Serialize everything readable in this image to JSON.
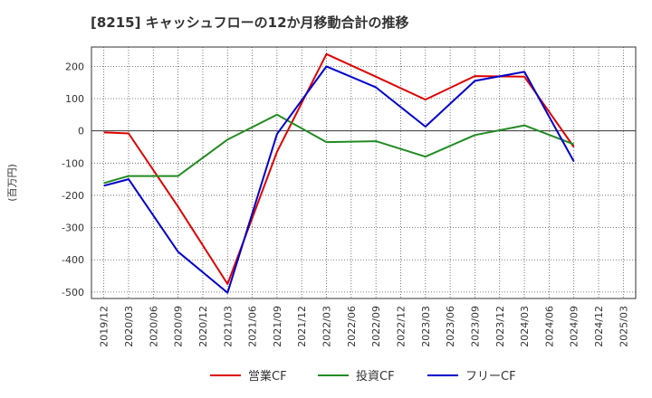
{
  "chart_data": {
    "type": "line",
    "title": "[8215]  キャッシュフローの12か月移動合計の推移",
    "ylabel": "(百万円)",
    "xlabel": "",
    "ylim": [
      -520,
      260
    ],
    "yticks": [
      200,
      100,
      0,
      -100,
      -200,
      -300,
      -400,
      -500
    ],
    "categories": [
      "2019/12",
      "2020/03",
      "2020/06",
      "2020/09",
      "2020/12",
      "2021/03",
      "2021/06",
      "2021/09",
      "2021/12",
      "2022/03",
      "2022/06",
      "2022/09",
      "2022/12",
      "2023/03",
      "2023/06",
      "2023/09",
      "2023/12",
      "2024/03",
      "2024/06",
      "2024/09",
      "2024/12",
      "2025/03"
    ],
    "grid": true,
    "legend_position": "bottom",
    "series": [
      {
        "name": "営業CF",
        "color": "#dd0000",
        "values": [
          -5,
          -8,
          null,
          -235,
          null,
          -475,
          null,
          -65,
          null,
          238,
          null,
          168,
          null,
          97,
          null,
          170,
          null,
          168,
          null,
          -50,
          null,
          null
        ]
      },
      {
        "name": "投資CF",
        "color": "#228b22",
        "values": [
          -162,
          -140,
          null,
          -140,
          null,
          -27,
          null,
          50,
          null,
          -35,
          null,
          -32,
          null,
          -80,
          null,
          -13,
          null,
          17,
          null,
          -42,
          null,
          null
        ]
      },
      {
        "name": "フリーCF",
        "color": "#0000cc",
        "values": [
          -170,
          -150,
          null,
          -375,
          null,
          -502,
          null,
          -10,
          null,
          200,
          null,
          135,
          null,
          13,
          null,
          155,
          null,
          183,
          null,
          -95,
          null,
          null
        ]
      }
    ]
  }
}
